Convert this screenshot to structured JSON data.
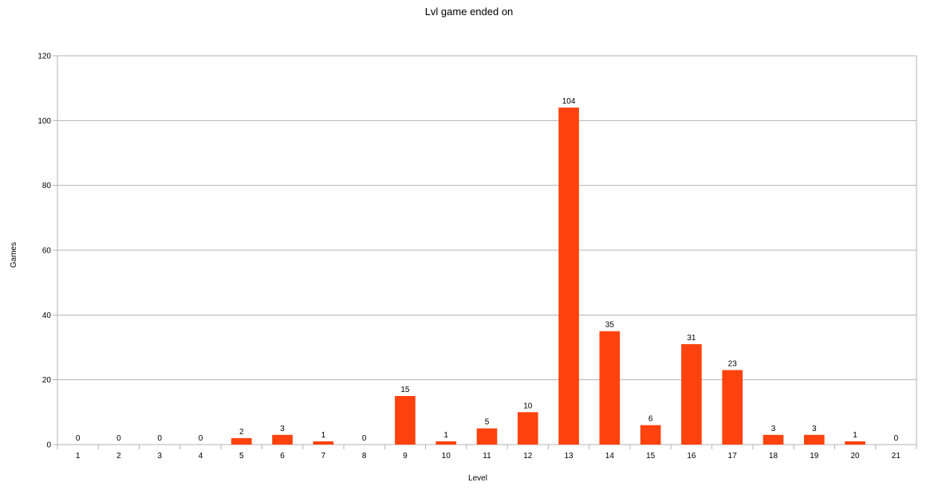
{
  "chart_data": {
    "type": "bar",
    "title": "Lvl game ended on",
    "xlabel": "Level",
    "ylabel": "Games",
    "categories": [
      "1",
      "2",
      "3",
      "4",
      "5",
      "6",
      "7",
      "8",
      "9",
      "10",
      "11",
      "12",
      "13",
      "14",
      "15",
      "16",
      "17",
      "18",
      "19",
      "20",
      "21"
    ],
    "values": [
      0,
      0,
      0,
      0,
      2,
      3,
      1,
      0,
      15,
      1,
      5,
      10,
      104,
      35,
      6,
      31,
      23,
      3,
      3,
      1,
      0
    ],
    "ylim": [
      0,
      120
    ],
    "yticks": [
      0,
      20,
      40,
      60,
      80,
      100,
      120
    ],
    "grid": true,
    "legend": "none",
    "colors": {
      "bar": "#ff420e",
      "grid": "#b3b3b3",
      "axis": "#b3b3b3"
    }
  }
}
